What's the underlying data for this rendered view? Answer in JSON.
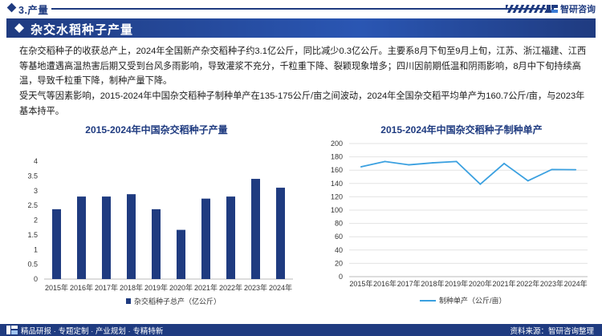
{
  "header": {
    "section_title": "3.产量",
    "brand_name": "智研咨询"
  },
  "banner": {
    "title": "杂交水稻种子产量"
  },
  "paragraphs": [
    "在杂交稻种子的收获总产上，2024年全国新产杂交稻种子约3.1亿公斤，同比减少0.3亿公斤。主要系8月下旬至9月上旬，江苏、浙江福建、江西等基地遭遇高温热害后期又受到台风多雨影响，导致灌浆不充分，千粒重下降、裂颖现象增多；四川因前期低温和阴雨影响，8月中下旬持续高温，导致千粒重下降，制种产量下降。",
    "受天气等因素影响，2015-2024年中国杂交稻种子制种单产在135-175公斤/亩之间波动，2024年全国杂交稻平均单产为160.7公斤/亩，与2023年基本持平。"
  ],
  "chart_data": [
    {
      "type": "bar",
      "title": "2015-2024年中国杂交稻种子产量",
      "categories": [
        "2015年",
        "2016年",
        "2017年",
        "2018年",
        "2019年",
        "2020年",
        "2021年",
        "2022年",
        "2023年",
        "2024年"
      ],
      "series": [
        {
          "name": "杂交稻种子总产（亿公斤）",
          "values": [
            2.37,
            2.8,
            2.8,
            2.88,
            2.37,
            1.67,
            2.73,
            2.8,
            3.4,
            3.1
          ]
        }
      ],
      "ylim": [
        0,
        4
      ],
      "yticks": [
        0,
        0.5,
        1,
        1.5,
        2,
        2.5,
        3,
        3.5,
        4
      ],
      "color": "#1f3b80",
      "legend": "bottom",
      "grid": false
    },
    {
      "type": "line",
      "title": "2015-2024年中国杂交稻种子制种单产",
      "categories": [
        "2015年",
        "2016年",
        "2017年",
        "2018年",
        "2019年",
        "2020年",
        "2021年",
        "2022年",
        "2023年",
        "2024年"
      ],
      "series": [
        {
          "name": "制种单产（公斤/亩）",
          "values": [
            165,
            173,
            168,
            171,
            173,
            139,
            170,
            144,
            161,
            160.7
          ]
        }
      ],
      "ylim": [
        0,
        200
      ],
      "yticks": [
        0,
        20,
        40,
        60,
        80,
        100,
        120,
        140,
        160,
        180,
        200
      ],
      "color": "#3aa0e0",
      "legend": "bottom",
      "grid": true
    }
  ],
  "footer": {
    "left": "精品研报 · 专题定制 · 产业规划 · 专精特新",
    "right": "资料来源：智研咨询整理"
  }
}
